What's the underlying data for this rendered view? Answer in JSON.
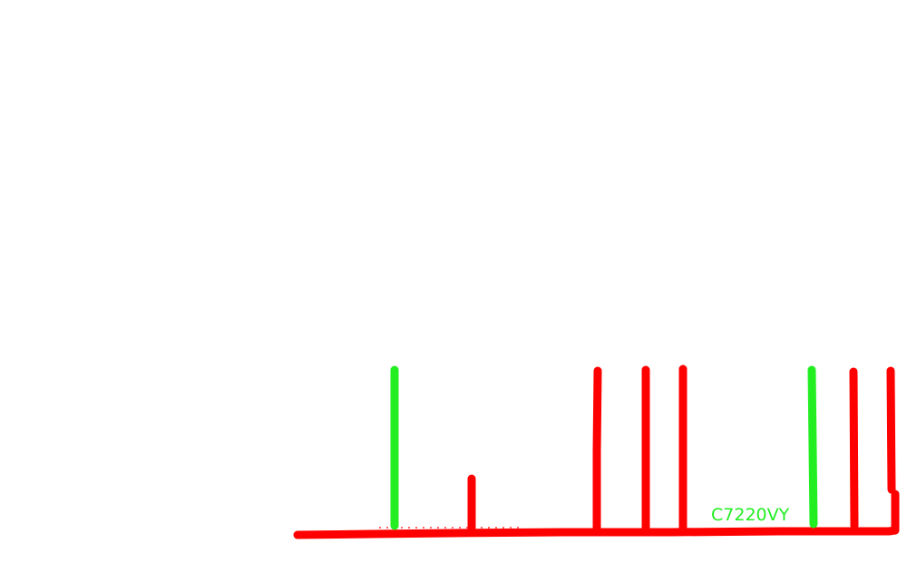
{
  "diagram": {
    "label_text": "C7220VY",
    "colors": {
      "red": "#ff0000",
      "green": "#22ee22",
      "label": "#22ee22",
      "background": "#ffffff"
    },
    "strokes": [
      {
        "name": "baseline",
        "color": "red"
      },
      {
        "name": "vertical-line-1",
        "color": "green"
      },
      {
        "name": "vertical-line-2",
        "color": "red"
      },
      {
        "name": "vertical-line-3",
        "color": "red"
      },
      {
        "name": "vertical-line-4",
        "color": "red"
      },
      {
        "name": "vertical-line-5",
        "color": "red"
      },
      {
        "name": "vertical-line-6",
        "color": "green"
      },
      {
        "name": "vertical-line-7",
        "color": "red"
      },
      {
        "name": "vertical-line-8",
        "color": "red"
      }
    ]
  }
}
